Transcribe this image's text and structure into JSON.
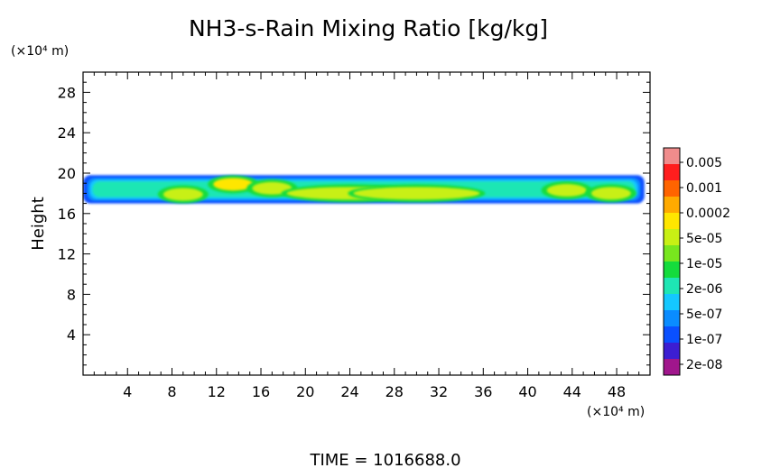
{
  "chart_data": {
    "type": "heatmap",
    "title": "NH3-s-Rain Mixing Ratio [kg/kg]",
    "xlabel": "",
    "ylabel": "Height",
    "x_unit_label": "(×10⁴ m)",
    "y_unit_label": "(×10⁴ m)",
    "x_range": [
      0,
      51
    ],
    "y_range": [
      0,
      30
    ],
    "x_ticks": [
      4,
      8,
      12,
      16,
      20,
      24,
      28,
      32,
      36,
      40,
      44,
      48
    ],
    "y_ticks": [
      4,
      8,
      12,
      16,
      20,
      24,
      28
    ],
    "footer": "TIME = 1016688.0",
    "colorbar": {
      "labels": [
        "0.005",
        "0.001",
        "0.0002",
        "5e-05",
        "1e-05",
        "2e-06",
        "5e-07",
        "1e-07",
        "2e-08"
      ],
      "colors": [
        "#a0168c",
        "#3c1ed2",
        "#0a50ff",
        "#0a8cff",
        "#14c8ff",
        "#1ee6b4",
        "#14dc3c",
        "#78e61e",
        "#c8f014",
        "#ffe600",
        "#ffaa00",
        "#ff6400",
        "#ff1e1e",
        "#f08c8c"
      ]
    },
    "cloud_band": {
      "y_min": 17.0,
      "y_max": 19.8,
      "x_min": 0,
      "x_max": 50.5,
      "cores": [
        {
          "x": 9.0,
          "y": 17.9,
          "level": "1e-05"
        },
        {
          "x": 13.5,
          "y": 18.9,
          "level": "5e-05"
        },
        {
          "x": 17.0,
          "y": 18.5,
          "level": "1e-05"
        },
        {
          "x": 24.0,
          "y": 18.0,
          "level": "1e-05"
        },
        {
          "x": 30.0,
          "y": 18.0,
          "level": "1e-05"
        },
        {
          "x": 43.5,
          "y": 18.3,
          "level": "1e-05"
        },
        {
          "x": 47.5,
          "y": 18.0,
          "level": "1e-05"
        }
      ]
    }
  }
}
